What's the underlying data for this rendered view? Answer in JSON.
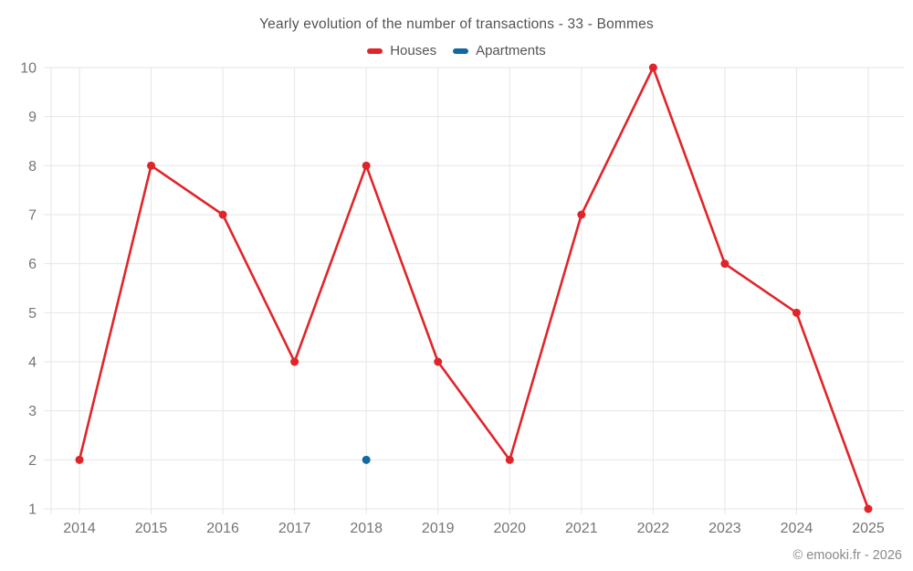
{
  "header": {
    "title": "Yearly evolution of the number of transactions - 33 - Bommes"
  },
  "legend": {
    "items": [
      {
        "label": "Houses",
        "color": "#e0252a"
      },
      {
        "label": "Apartments",
        "color": "#1169a0"
      }
    ]
  },
  "footer": {
    "copyright": "© emooki.fr - 2026"
  },
  "chart_data": {
    "type": "line",
    "title": "Yearly evolution of the number of transactions - 33 - Bommes",
    "categories": [
      "2014",
      "2015",
      "2016",
      "2017",
      "2018",
      "2019",
      "2020",
      "2021",
      "2022",
      "2023",
      "2024",
      "2025"
    ],
    "series": [
      {
        "name": "Houses",
        "color": "#e0252a",
        "values": [
          2,
          8,
          7,
          4,
          8,
          4,
          2,
          7,
          10,
          6,
          5,
          1
        ]
      },
      {
        "name": "Apartments",
        "color": "#1169a0",
        "values": [
          null,
          null,
          null,
          null,
          2,
          null,
          null,
          null,
          null,
          null,
          null,
          null
        ]
      }
    ],
    "xlabel": "",
    "ylabel": "",
    "ylim": [
      1,
      10
    ],
    "yticks": [
      1,
      2,
      3,
      4,
      5,
      6,
      7,
      8,
      9,
      10
    ],
    "grid": true,
    "legend_position": "top",
    "grid_color": "#e6e6e6",
    "axis_label_color": "#757575"
  }
}
